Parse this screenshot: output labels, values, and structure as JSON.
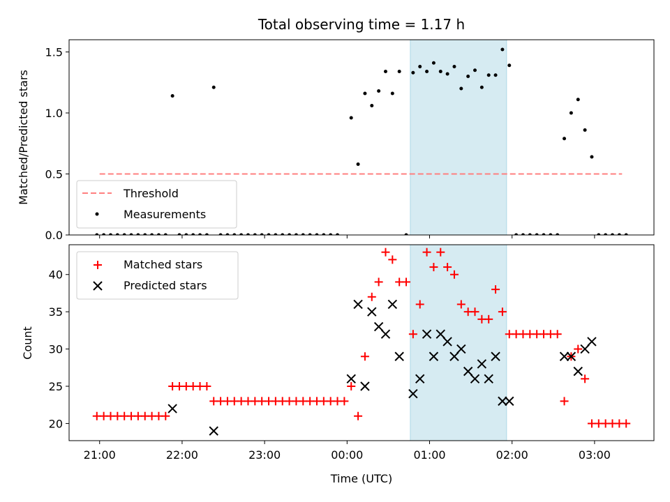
{
  "chart_data": {
    "title": "Total observing time = 1.17 h",
    "xlabel": "Time (UTC)",
    "x_tick_labels": [
      "21:00",
      "22:00",
      "23:00",
      "00:00",
      "01:00",
      "02:00",
      "03:00"
    ],
    "x_tick_hours": [
      0,
      1,
      2,
      3,
      4,
      5,
      6
    ],
    "x_range_hours_after_2100": [
      -0.37,
      6.72
    ],
    "shaded_region": {
      "from": "00:46",
      "to": "01:56",
      "color": "#add8e6"
    },
    "colors": {
      "threshold": "#ff7f7f",
      "measurements": "#000000",
      "matched": "#ff0000",
      "predicted": "#000000",
      "shading": "#add8e6"
    },
    "panels": [
      {
        "type": "scatter",
        "ylabel": "Matched/Predicted stars",
        "ylim": [
          0,
          1.6
        ],
        "y_ticks": [
          0.0,
          0.5,
          1.0,
          1.5
        ],
        "y_tick_labels": [
          "0.0",
          "0.5",
          "1.0",
          "1.5"
        ],
        "legend_position": "lower-left",
        "threshold": {
          "name": "Threshold",
          "value": 0.5,
          "from": "21:00",
          "to": "03:20"
        },
        "series": [
          {
            "name": "Measurements",
            "marker": "dot",
            "points": [
              [
                "20:58",
                0
              ],
              [
                "21:03",
                0
              ],
              [
                "21:08",
                0
              ],
              [
                "21:13",
                0
              ],
              [
                "21:18",
                0
              ],
              [
                "21:23",
                0
              ],
              [
                "21:28",
                0
              ],
              [
                "21:33",
                0
              ],
              [
                "21:38",
                0
              ],
              [
                "21:43",
                0
              ],
              [
                "21:48",
                0
              ],
              [
                "21:53",
                1.14
              ],
              [
                "21:58",
                0
              ],
              [
                "22:03",
                0
              ],
              [
                "22:08",
                0
              ],
              [
                "22:13",
                0
              ],
              [
                "22:18",
                0
              ],
              [
                "22:23",
                1.21
              ],
              [
                "22:28",
                0
              ],
              [
                "22:33",
                0
              ],
              [
                "22:38",
                0
              ],
              [
                "22:43",
                0
              ],
              [
                "22:48",
                0
              ],
              [
                "22:53",
                0
              ],
              [
                "22:58",
                0
              ],
              [
                "23:03",
                0
              ],
              [
                "23:08",
                0
              ],
              [
                "23:13",
                0
              ],
              [
                "23:18",
                0
              ],
              [
                "23:23",
                0
              ],
              [
                "23:28",
                0
              ],
              [
                "23:33",
                0
              ],
              [
                "23:38",
                0
              ],
              [
                "23:43",
                0
              ],
              [
                "23:48",
                0
              ],
              [
                "23:53",
                0
              ],
              [
                "00:03",
                0.96
              ],
              [
                "00:08",
                0.58
              ],
              [
                "00:13",
                1.16
              ],
              [
                "00:18",
                1.06
              ],
              [
                "00:23",
                1.18
              ],
              [
                "00:28",
                1.34
              ],
              [
                "00:33",
                1.16
              ],
              [
                "00:38",
                1.34
              ],
              [
                "00:43",
                0
              ],
              [
                "00:48",
                1.33
              ],
              [
                "00:53",
                1.38
              ],
              [
                "00:58",
                1.34
              ],
              [
                "01:03",
                1.41
              ],
              [
                "01:08",
                1.34
              ],
              [
                "01:13",
                1.32
              ],
              [
                "01:18",
                1.38
              ],
              [
                "01:23",
                1.2
              ],
              [
                "01:28",
                1.3
              ],
              [
                "01:33",
                1.35
              ],
              [
                "01:38",
                1.21
              ],
              [
                "01:43",
                1.31
              ],
              [
                "01:48",
                1.31
              ],
              [
                "01:53",
                1.52
              ],
              [
                "01:58",
                1.39
              ],
              [
                "02:03",
                0
              ],
              [
                "02:08",
                0
              ],
              [
                "02:13",
                0
              ],
              [
                "02:18",
                0
              ],
              [
                "02:23",
                0
              ],
              [
                "02:28",
                0
              ],
              [
                "02:33",
                0
              ],
              [
                "02:38",
                0.79
              ],
              [
                "02:43",
                1.0
              ],
              [
                "02:48",
                1.11
              ],
              [
                "02:53",
                0.86
              ],
              [
                "02:58",
                0.64
              ],
              [
                "03:03",
                0
              ],
              [
                "03:08",
                0
              ],
              [
                "03:13",
                0
              ],
              [
                "03:18",
                0
              ],
              [
                "03:23",
                0
              ]
            ]
          }
        ]
      },
      {
        "type": "scatter",
        "ylabel": "Count",
        "ylim": [
          17.7,
          44.0
        ],
        "y_ticks": [
          20,
          25,
          30,
          35,
          40
        ],
        "y_tick_labels": [
          "20",
          "25",
          "30",
          "35",
          "40"
        ],
        "legend_position": "upper-left",
        "series": [
          {
            "name": "Matched stars",
            "marker": "plus",
            "points": [
              [
                "20:58",
                21
              ],
              [
                "21:03",
                21
              ],
              [
                "21:08",
                21
              ],
              [
                "21:13",
                21
              ],
              [
                "21:18",
                21
              ],
              [
                "21:23",
                21
              ],
              [
                "21:28",
                21
              ],
              [
                "21:33",
                21
              ],
              [
                "21:38",
                21
              ],
              [
                "21:43",
                21
              ],
              [
                "21:48",
                21
              ],
              [
                "21:53",
                25
              ],
              [
                "21:58",
                25
              ],
              [
                "22:03",
                25
              ],
              [
                "22:08",
                25
              ],
              [
                "22:13",
                25
              ],
              [
                "22:18",
                25
              ],
              [
                "22:23",
                23
              ],
              [
                "22:28",
                23
              ],
              [
                "22:33",
                23
              ],
              [
                "22:38",
                23
              ],
              [
                "22:43",
                23
              ],
              [
                "22:48",
                23
              ],
              [
                "22:53",
                23
              ],
              [
                "22:58",
                23
              ],
              [
                "23:03",
                23
              ],
              [
                "23:08",
                23
              ],
              [
                "23:13",
                23
              ],
              [
                "23:18",
                23
              ],
              [
                "23:23",
                23
              ],
              [
                "23:28",
                23
              ],
              [
                "23:33",
                23
              ],
              [
                "23:38",
                23
              ],
              [
                "23:43",
                23
              ],
              [
                "23:48",
                23
              ],
              [
                "23:53",
                23
              ],
              [
                "23:58",
                23
              ],
              [
                "00:03",
                25
              ],
              [
                "00:08",
                21
              ],
              [
                "00:13",
                29
              ],
              [
                "00:18",
                37
              ],
              [
                "00:23",
                39
              ],
              [
                "00:28",
                43
              ],
              [
                "00:33",
                42
              ],
              [
                "00:38",
                39
              ],
              [
                "00:43",
                39
              ],
              [
                "00:48",
                32
              ],
              [
                "00:53",
                36
              ],
              [
                "00:58",
                43
              ],
              [
                "01:03",
                41
              ],
              [
                "01:08",
                43
              ],
              [
                "01:13",
                41
              ],
              [
                "01:18",
                40
              ],
              [
                "01:23",
                36
              ],
              [
                "01:28",
                35
              ],
              [
                "01:33",
                35
              ],
              [
                "01:38",
                34
              ],
              [
                "01:43",
                34
              ],
              [
                "01:48",
                38
              ],
              [
                "01:53",
                35
              ],
              [
                "01:58",
                32
              ],
              [
                "02:03",
                32
              ],
              [
                "02:08",
                32
              ],
              [
                "02:13",
                32
              ],
              [
                "02:18",
                32
              ],
              [
                "02:23",
                32
              ],
              [
                "02:28",
                32
              ],
              [
                "02:33",
                32
              ],
              [
                "02:38",
                23
              ],
              [
                "02:43",
                29
              ],
              [
                "02:48",
                30
              ],
              [
                "02:53",
                26
              ],
              [
                "02:58",
                20
              ],
              [
                "03:03",
                20
              ],
              [
                "03:08",
                20
              ],
              [
                "03:13",
                20
              ],
              [
                "03:18",
                20
              ],
              [
                "03:23",
                20
              ]
            ]
          },
          {
            "name": "Predicted stars",
            "marker": "x",
            "points": [
              [
                "21:53",
                22
              ],
              [
                "22:23",
                19
              ],
              [
                "00:03",
                26
              ],
              [
                "00:08",
                36
              ],
              [
                "00:13",
                25
              ],
              [
                "00:18",
                35
              ],
              [
                "00:23",
                33
              ],
              [
                "00:28",
                32
              ],
              [
                "00:33",
                36
              ],
              [
                "00:38",
                29
              ],
              [
                "00:48",
                24
              ],
              [
                "00:53",
                26
              ],
              [
                "00:58",
                32
              ],
              [
                "01:03",
                29
              ],
              [
                "01:08",
                32
              ],
              [
                "01:13",
                31
              ],
              [
                "01:18",
                29
              ],
              [
                "01:23",
                30
              ],
              [
                "01:28",
                27
              ],
              [
                "01:33",
                26
              ],
              [
                "01:38",
                28
              ],
              [
                "01:43",
                26
              ],
              [
                "01:48",
                29
              ],
              [
                "01:53",
                23
              ],
              [
                "01:58",
                23
              ],
              [
                "02:38",
                29
              ],
              [
                "02:43",
                29
              ],
              [
                "02:48",
                27
              ],
              [
                "02:53",
                30
              ],
              [
                "02:58",
                31
              ]
            ]
          }
        ]
      }
    ]
  }
}
